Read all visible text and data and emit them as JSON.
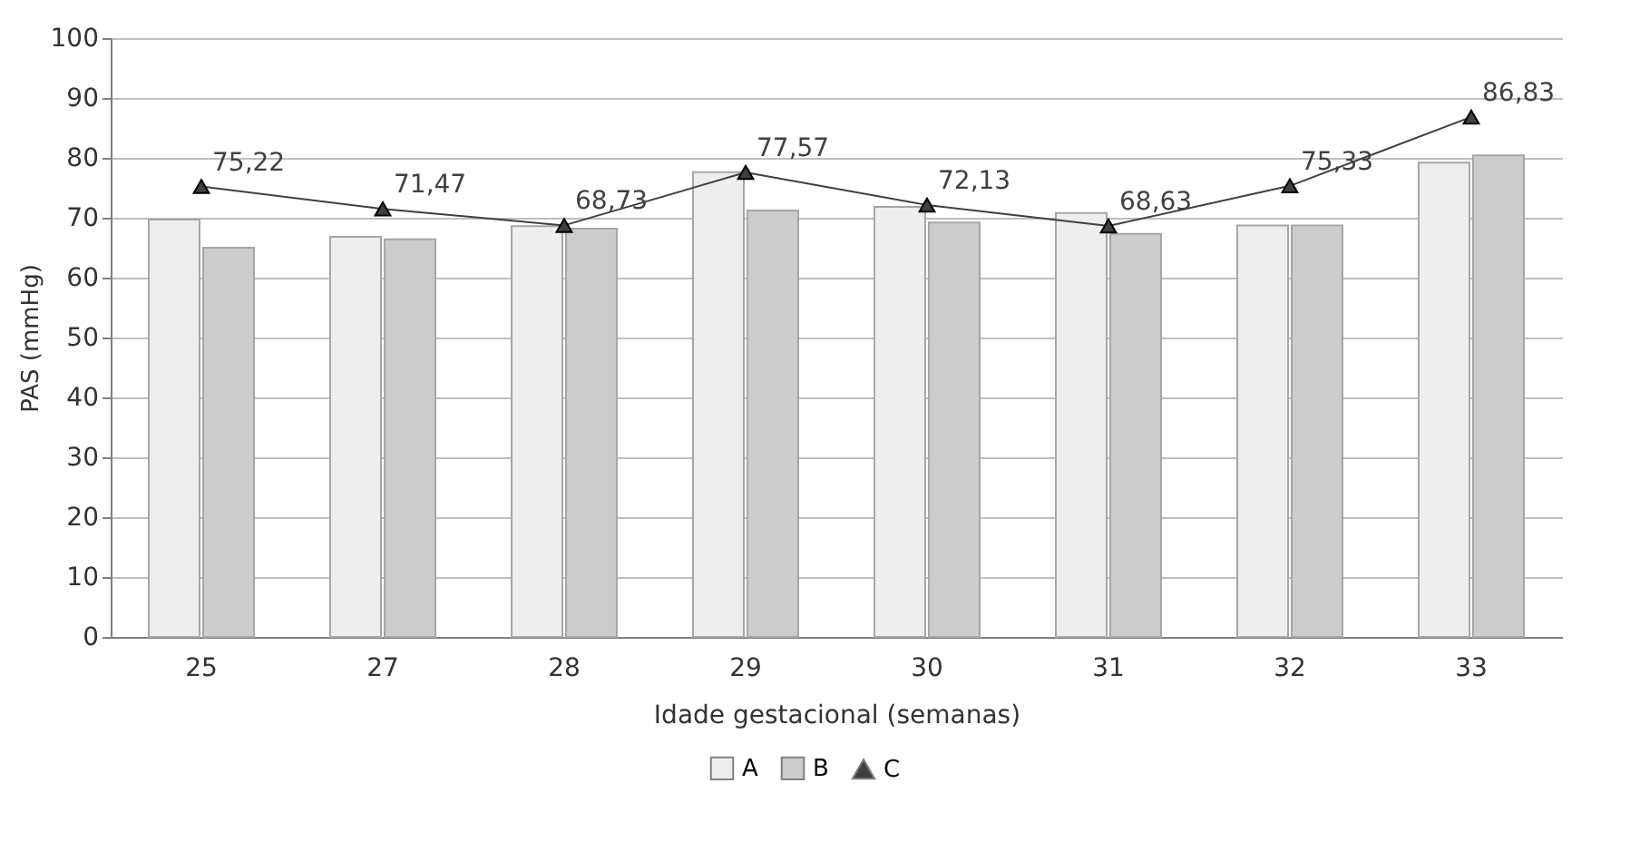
{
  "chart_data": {
    "type": "bar",
    "xlabel": "Idade gestacional (semanas)",
    "ylabel": "PAS (mmHg)",
    "categories": [
      "25",
      "27",
      "28",
      "29",
      "30",
      "31",
      "32",
      "33"
    ],
    "series": [
      {
        "name": "A",
        "color": "#eeeeee",
        "values": [
          69.7,
          66.8,
          68.6,
          77.6,
          71.8,
          70.8,
          68.7,
          79.2
        ]
      },
      {
        "name": "B",
        "color": "#cccccc",
        "values": [
          65.0,
          66.4,
          68.2,
          71.2,
          69.2,
          67.3,
          68.7,
          80.4
        ]
      },
      {
        "name": "C",
        "type": "line",
        "color": "#404040",
        "marker": "triangle",
        "line_style": "solid",
        "values": [
          75.22,
          71.47,
          68.73,
          77.57,
          72.13,
          68.63,
          75.33,
          86.83
        ],
        "value_labels": [
          "75,22",
          "71,47",
          "68,73",
          "77,57",
          "72,13",
          "68,63",
          "75,33",
          "86,83"
        ]
      }
    ],
    "ylim": [
      0,
      100
    ],
    "yticks": [
      0,
      10,
      20,
      30,
      40,
      50,
      60,
      70,
      80,
      90,
      100
    ],
    "grid": "y",
    "legend": "bottom"
  }
}
